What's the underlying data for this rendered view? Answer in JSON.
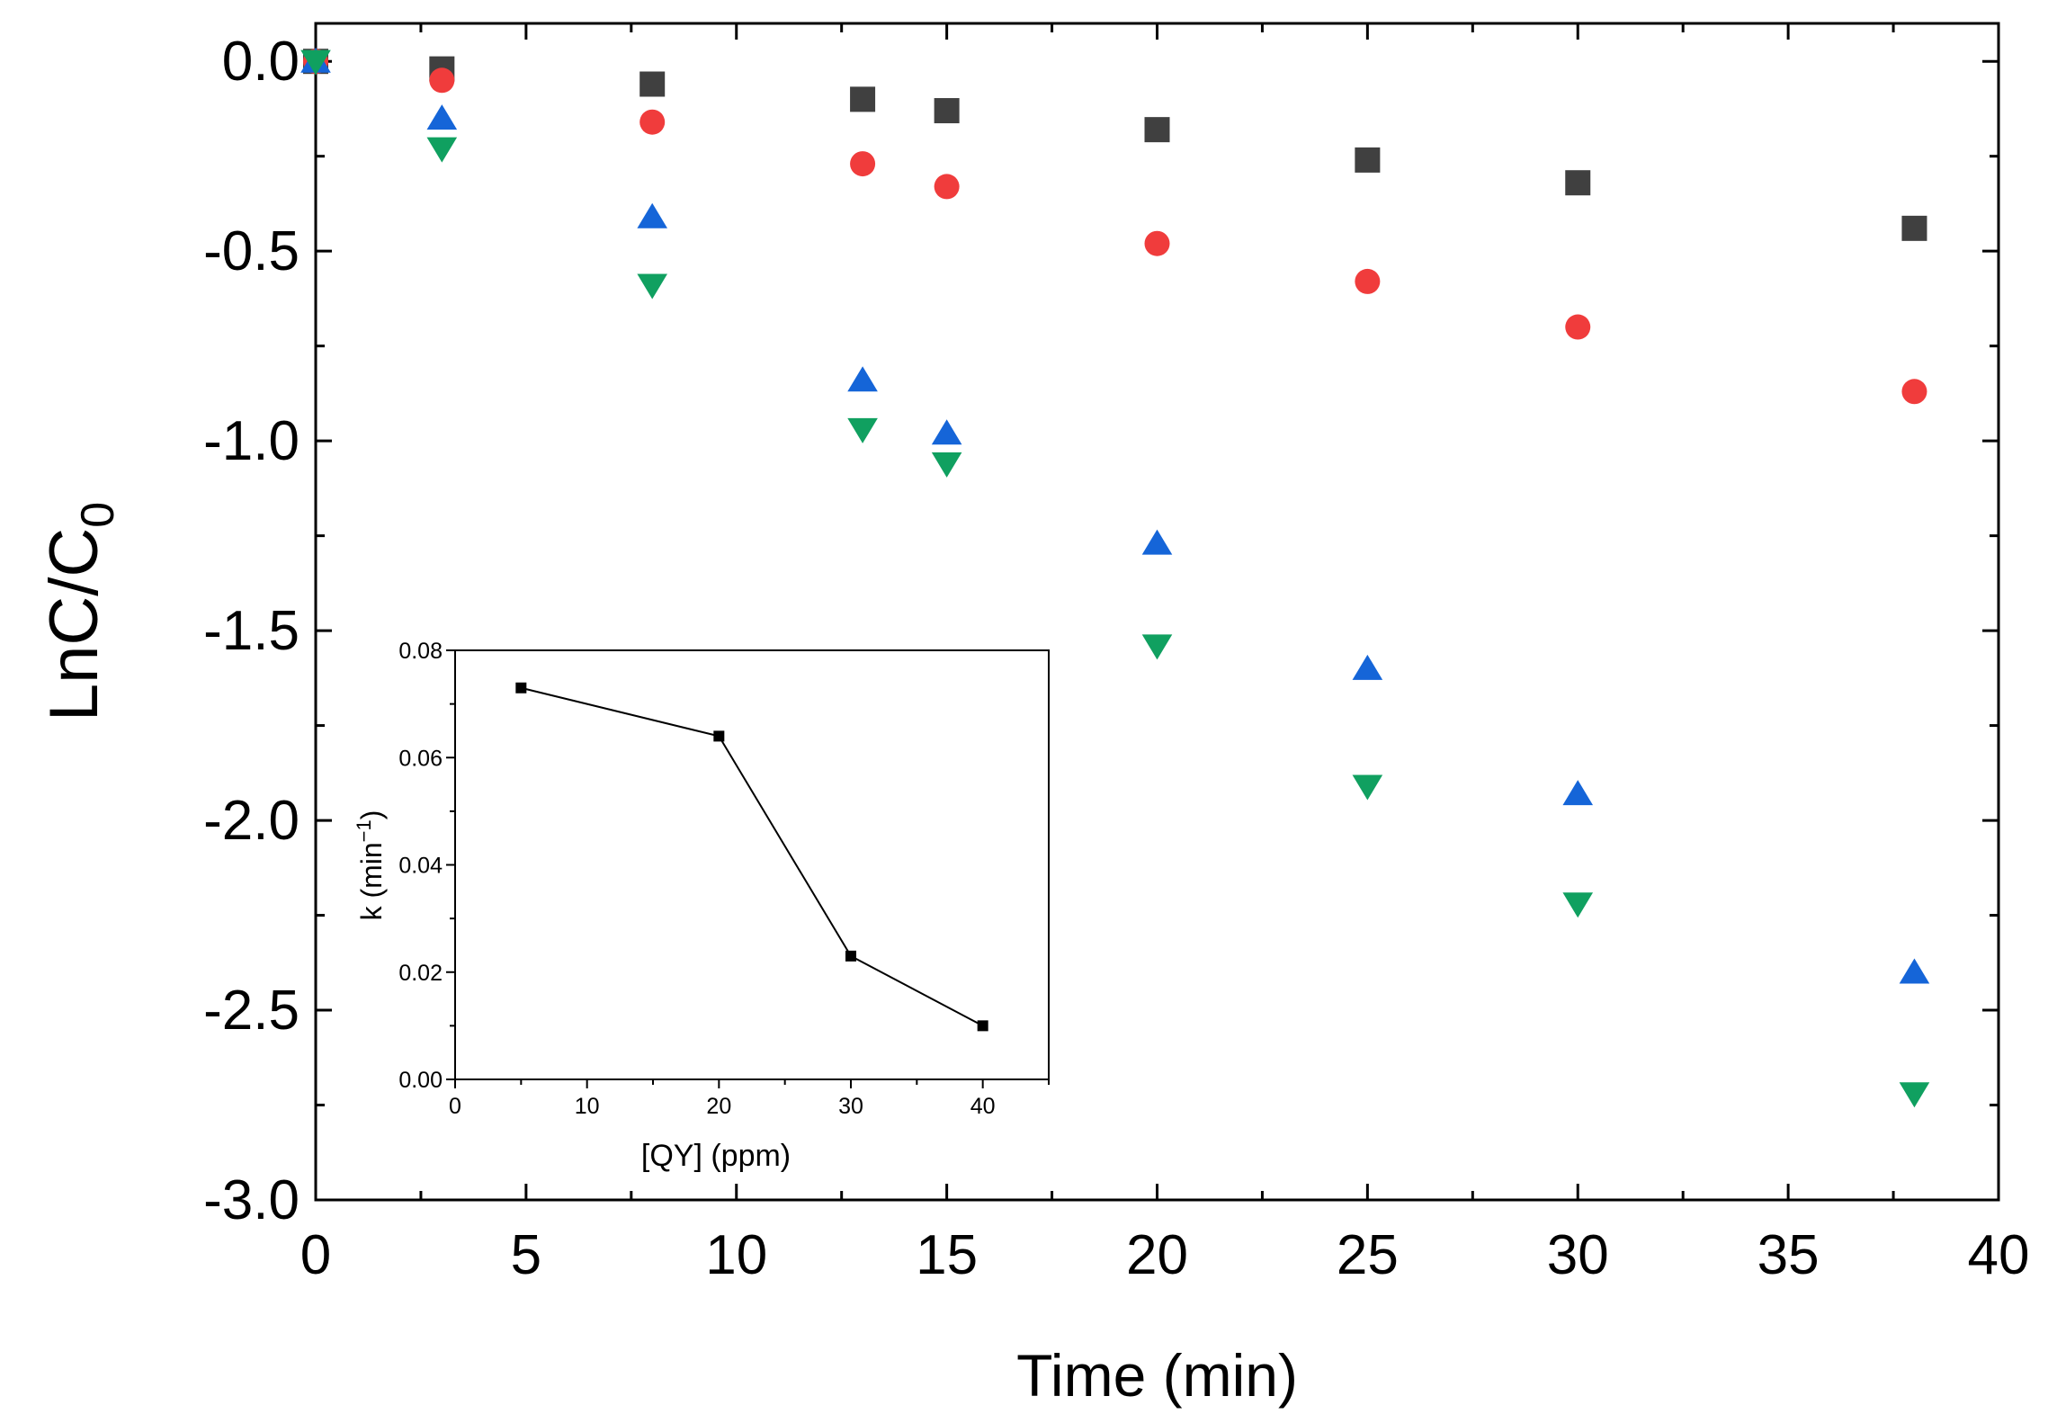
{
  "chart_data": [
    {
      "type": "scatter",
      "xlabel": "Time (min)",
      "ylabel": "LnC/C",
      "ylabel_sub": "0",
      "xlim": [
        0,
        40
      ],
      "ylim": [
        -3.0,
        0.1
      ],
      "x_ticks": [
        "0",
        "5",
        "10",
        "15",
        "20",
        "25",
        "30",
        "35",
        "40"
      ],
      "y_ticks": [
        "0.0",
        "-0.5",
        "-1.0",
        "-1.5",
        "-2.0",
        "-2.5",
        "-3.0"
      ],
      "grid": false,
      "legend": "none",
      "series": [
        {
          "marker": "square",
          "color": "#404040",
          "x": [
            0,
            3,
            8,
            13,
            15,
            20,
            25,
            30,
            38
          ],
          "y": [
            0,
            -0.02,
            -0.06,
            -0.1,
            -0.13,
            -0.18,
            -0.26,
            -0.32,
            -0.44
          ]
        },
        {
          "marker": "circle",
          "color": "#f03c3c",
          "x": [
            0,
            3,
            8,
            13,
            15,
            20,
            25,
            30,
            38
          ],
          "y": [
            0,
            -0.05,
            -0.16,
            -0.27,
            -0.33,
            -0.48,
            -0.58,
            -0.7,
            -0.87
          ]
        },
        {
          "marker": "triangle-up",
          "color": "#1565d8",
          "x": [
            0,
            3,
            8,
            13,
            15,
            20,
            25,
            30,
            38
          ],
          "y": [
            0,
            -0.15,
            -0.41,
            -0.84,
            -0.98,
            -1.27,
            -1.6,
            -1.93,
            -2.4
          ]
        },
        {
          "marker": "triangle-down",
          "color": "#10a060",
          "x": [
            0,
            3,
            8,
            13,
            15,
            20,
            25,
            30,
            38
          ],
          "y": [
            0,
            -0.23,
            -0.59,
            -0.97,
            -1.06,
            -1.54,
            -1.91,
            -2.22,
            -2.72
          ]
        }
      ]
    },
    {
      "type": "line",
      "xlabel": "[QY] (ppm)",
      "ylabel": "k (min",
      "ylabel_sup": "−1",
      "ylabel_close": ")",
      "xlim": [
        0,
        45
      ],
      "ylim": [
        0,
        0.08
      ],
      "x_ticks": [
        "0",
        "10",
        "20",
        "30",
        "40"
      ],
      "y_ticks": [
        "0.00",
        "0.02",
        "0.04",
        "0.06",
        "0.08"
      ],
      "grid": false,
      "legend": "none",
      "series": [
        {
          "marker": "square",
          "color": "#000000",
          "x": [
            5,
            20,
            30,
            40
          ],
          "y": [
            0.073,
            0.064,
            0.023,
            0.01
          ]
        }
      ]
    }
  ]
}
